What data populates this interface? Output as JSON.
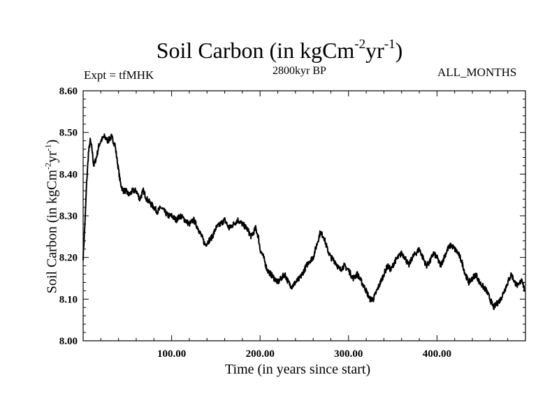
{
  "chart_data": {
    "type": "line",
    "title": "Soil Carbon (in kgCm",
    "title_exp1": "-2",
    "title_mid": "yr",
    "title_exp2": "-1",
    "title_end": ")",
    "subtitle": "2800kyr BP",
    "experiment_label": "Expt = tfMHK",
    "months_label": "ALL_MONTHS",
    "xlabel": "Time (in years since start)",
    "ylabel": "Soil Carbon (in kgCm",
    "ylabel_exp1": "-2",
    "ylabel_mid": "yr",
    "ylabel_exp2": "-1",
    "ylabel_end": ")",
    "xlim": [
      0,
      500
    ],
    "ylim": [
      8.0,
      8.6
    ],
    "xticks": [
      100,
      200,
      300,
      400
    ],
    "xtick_labels": [
      "100.00",
      "200.00",
      "300.00",
      "400.00"
    ],
    "yticks": [
      8.0,
      8.1,
      8.2,
      8.3,
      8.4,
      8.5,
      8.6
    ],
    "ytick_labels": [
      "8.00",
      "8.10",
      "8.20",
      "8.30",
      "8.40",
      "8.50",
      "8.60"
    ],
    "series": [
      {
        "name": "Soil Carbon",
        "x": [
          0,
          2,
          4,
          6,
          8,
          10,
          12,
          15,
          18,
          20,
          24,
          28,
          32,
          36,
          38,
          40,
          42,
          45,
          48,
          52,
          56,
          60,
          64,
          68,
          72,
          76,
          80,
          84,
          88,
          92,
          96,
          100,
          105,
          110,
          115,
          120,
          125,
          130,
          134,
          138,
          142,
          146,
          150,
          155,
          160,
          165,
          170,
          175,
          180,
          185,
          190,
          195,
          198,
          200,
          204,
          208,
          212,
          216,
          220,
          224,
          228,
          232,
          236,
          240,
          245,
          250,
          255,
          260,
          264,
          268,
          272,
          276,
          280,
          285,
          290,
          295,
          300,
          305,
          310,
          315,
          320,
          324,
          328,
          332,
          336,
          340,
          344,
          348,
          352,
          356,
          360,
          364,
          368,
          372,
          376,
          380,
          384,
          388,
          392,
          396,
          400,
          404,
          408,
          412,
          416,
          420,
          424,
          428,
          432,
          436,
          440,
          444,
          448,
          452,
          456,
          460,
          464,
          468,
          472,
          476,
          480,
          484,
          488,
          492,
          496,
          499
        ],
        "values": [
          8.2,
          8.28,
          8.38,
          8.45,
          8.48,
          8.46,
          8.42,
          8.44,
          8.47,
          8.48,
          8.49,
          8.48,
          8.49,
          8.47,
          8.44,
          8.41,
          8.38,
          8.36,
          8.36,
          8.35,
          8.36,
          8.36,
          8.34,
          8.36,
          8.34,
          8.33,
          8.32,
          8.31,
          8.32,
          8.31,
          8.3,
          8.3,
          8.29,
          8.3,
          8.29,
          8.28,
          8.29,
          8.27,
          8.25,
          8.23,
          8.24,
          8.25,
          8.27,
          8.28,
          8.29,
          8.27,
          8.28,
          8.29,
          8.28,
          8.27,
          8.25,
          8.27,
          8.25,
          8.22,
          8.2,
          8.17,
          8.16,
          8.15,
          8.14,
          8.15,
          8.16,
          8.14,
          8.13,
          8.14,
          8.15,
          8.17,
          8.19,
          8.2,
          8.23,
          8.26,
          8.25,
          8.22,
          8.2,
          8.19,
          8.17,
          8.18,
          8.17,
          8.15,
          8.16,
          8.14,
          8.12,
          8.1,
          8.1,
          8.12,
          8.14,
          8.16,
          8.18,
          8.17,
          8.19,
          8.2,
          8.21,
          8.2,
          8.18,
          8.2,
          8.21,
          8.22,
          8.2,
          8.18,
          8.19,
          8.21,
          8.2,
          8.18,
          8.2,
          8.22,
          8.23,
          8.22,
          8.21,
          8.19,
          8.16,
          8.14,
          8.15,
          8.16,
          8.14,
          8.13,
          8.12,
          8.1,
          8.08,
          8.09,
          8.1,
          8.12,
          8.14,
          8.16,
          8.14,
          8.13,
          8.15,
          8.12
        ]
      }
    ]
  }
}
